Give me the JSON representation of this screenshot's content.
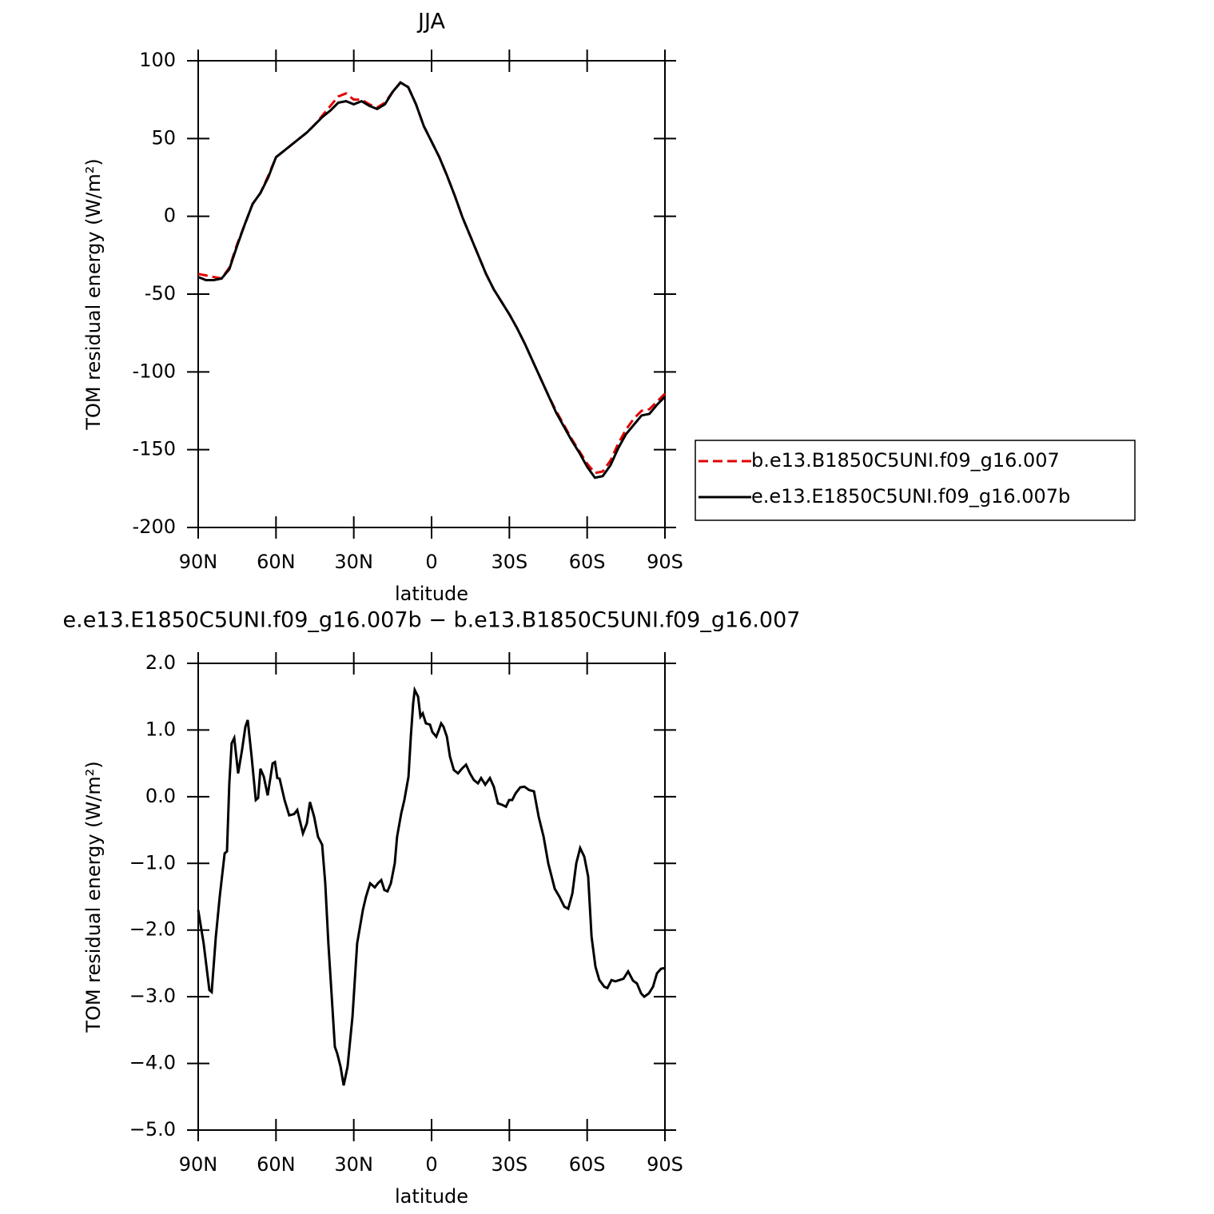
{
  "chart_data": [
    {
      "type": "line",
      "title": "JJA",
      "xlabel": "latitude",
      "ylabel": "TOM residual energy (W/m²)",
      "xlim": [
        90,
        -90
      ],
      "xticks": [
        {
          "value": 90,
          "label": "90N"
        },
        {
          "value": 60,
          "label": "60N"
        },
        {
          "value": 30,
          "label": "30N"
        },
        0,
        {
          "value": -30,
          "label": "30S"
        },
        {
          "value": -60,
          "label": "60S"
        },
        {
          "value": -90,
          "label": "90S"
        }
      ],
      "ylim": [
        -200,
        100
      ],
      "yticks": [
        100,
        50,
        0,
        -50,
        -100,
        -150,
        -200
      ],
      "legend": "right",
      "x": [
        90,
        87,
        84,
        81,
        78,
        75,
        72,
        69,
        66,
        63,
        60,
        57,
        54,
        51,
        48,
        45,
        42,
        39,
        36,
        33,
        30,
        27,
        24,
        21,
        18,
        15,
        12,
        9,
        6,
        3,
        0,
        -3,
        -6,
        -9,
        -12,
        -15,
        -18,
        -21,
        -24,
        -27,
        -30,
        -33,
        -36,
        -39,
        -42,
        -45,
        -48,
        -51,
        -54,
        -57,
        -60,
        -63,
        -66,
        -69,
        -72,
        -75,
        -78,
        -81,
        -84,
        -87,
        -90
      ],
      "series": [
        {
          "name": "b.e13.B1850C5UNI.f09_g16.007",
          "color": "#e00000",
          "style": "dashed",
          "values": [
            -37,
            -38,
            -39,
            -40,
            -33,
            -18,
            -5,
            8,
            15,
            26,
            38,
            42,
            46,
            50,
            54,
            59,
            65,
            71,
            77,
            79,
            75,
            75,
            72,
            70,
            73,
            80,
            86,
            83,
            72,
            58,
            48,
            38,
            26,
            13,
            -1,
            -13,
            -25,
            -37,
            -47,
            -55,
            -63,
            -72,
            -82,
            -93,
            -104,
            -115,
            -125,
            -134,
            -143,
            -151,
            -159,
            -165,
            -164,
            -157,
            -146,
            -137,
            -130,
            -125,
            -124,
            -119,
            -114
          ]
        },
        {
          "name": "e.e13.E1850C5UNI.f09_g16.007b",
          "color": "#000000",
          "style": "solid",
          "values": [
            -39,
            -41,
            -41,
            -40,
            -34,
            -19,
            -5,
            8,
            15,
            25,
            38,
            42,
            46,
            50,
            54,
            59,
            64,
            68,
            73,
            74,
            72,
            74,
            71,
            69,
            72,
            80,
            86,
            83,
            72,
            58,
            48,
            38,
            26,
            13,
            -1,
            -13,
            -25,
            -37,
            -47,
            -55,
            -63,
            -72,
            -82,
            -93,
            -104,
            -115,
            -126,
            -135,
            -144,
            -152,
            -161,
            -168,
            -167,
            -160,
            -149,
            -140,
            -134,
            -128,
            -127,
            -121,
            -116
          ]
        }
      ]
    },
    {
      "type": "line",
      "title": "e.e13.E1850C5UNI.f09_g16.007b − b.e13.B1850C5UNI.f09_g16.007",
      "xlabel": "latitude",
      "ylabel": "TOM residual energy (W/m²)",
      "xlim": [
        90,
        -90
      ],
      "xticks": [
        {
          "value": 90,
          "label": "90N"
        },
        {
          "value": 60,
          "label": "60N"
        },
        {
          "value": 30,
          "label": "30N"
        },
        0,
        {
          "value": -30,
          "label": "30S"
        },
        {
          "value": -60,
          "label": "60S"
        },
        {
          "value": -90,
          "label": "90S"
        }
      ],
      "ylim": [
        -5,
        2
      ],
      "yticks": [
        {
          "value": 2,
          "label": "2.0"
        },
        {
          "value": 1,
          "label": "1.0"
        },
        {
          "value": 0,
          "label": "0.0"
        },
        {
          "value": -1,
          "label": "−1.0"
        },
        {
          "value": -2,
          "label": "−2.0"
        },
        {
          "value": -3,
          "label": "−3.0"
        },
        {
          "value": -4,
          "label": "−4.0"
        },
        {
          "value": -5,
          "label": "−5.0"
        }
      ],
      "x": [
        90.0,
        87.9,
        85.7,
        84.8,
        83.2,
        81.7,
        79.8,
        78.9,
        78.0,
        77.1,
        76.1,
        74.6,
        73.1,
        71.8,
        70.9,
        69.4,
        67.8,
        66.9,
        66.0,
        64.7,
        63.2,
        61.3,
        60.4,
        59.5,
        58.6,
        56.7,
        54.9,
        53.0,
        51.8,
        49.6,
        48.1,
        46.9,
        45.3,
        43.8,
        42.2,
        41.0,
        39.8,
        38.5,
        37.3,
        36.4,
        35.1,
        33.9,
        32.4,
        30.5,
        28.7,
        26.5,
        25.3,
        23.7,
        21.9,
        20.7,
        19.4,
        18.2,
        17.0,
        15.7,
        14.2,
        13.3,
        11.7,
        10.5,
        8.9,
        8.0,
        7.1,
        6.5,
        5.2,
        4.3,
        3.4,
        2.2,
        0.6,
        -0.3,
        -1.8,
        -2.8,
        -3.7,
        -4.6,
        -5.9,
        -7.1,
        -8.6,
        -10.2,
        -11.7,
        -13.3,
        -14.8,
        -16.3,
        -17.9,
        -19.1,
        -20.7,
        -22.5,
        -24.0,
        -25.6,
        -27.1,
        -28.7,
        -29.9,
        -31.1,
        -32.4,
        -34.2,
        -35.8,
        -37.6,
        -39.5,
        -41.3,
        -43.2,
        -45.0,
        -47.5,
        -49.3,
        -51.2,
        -52.7,
        -54.3,
        -55.8,
        -57.3,
        -58.9,
        -60.4,
        -61.7,
        -63.2,
        -64.7,
        -66.6,
        -67.8,
        -69.4,
        -70.9,
        -72.4,
        -74.0,
        -75.8,
        -77.7,
        -79.2,
        -80.8,
        -82.0,
        -83.8,
        -85.4,
        -86.9,
        -88.5,
        -90.0
      ],
      "series": [
        {
          "color": "#000000",
          "style": "solid",
          "values": [
            -1.7,
            -2.2,
            -2.9,
            -2.93,
            -2.1,
            -1.5,
            -0.85,
            -0.82,
            0.2,
            0.8,
            0.88,
            0.35,
            0.7,
            1.05,
            1.15,
            0.6,
            -0.05,
            -0.02,
            0.42,
            0.3,
            0.02,
            0.5,
            0.52,
            0.28,
            0.27,
            -0.05,
            -0.28,
            -0.26,
            -0.2,
            -0.55,
            -0.4,
            -0.08,
            -0.3,
            -0.6,
            -0.72,
            -1.3,
            -2.2,
            -3.0,
            -3.75,
            -3.85,
            -4.05,
            -4.33,
            -4.05,
            -3.3,
            -2.2,
            -1.7,
            -1.5,
            -1.3,
            -1.36,
            -1.3,
            -1.25,
            -1.4,
            -1.42,
            -1.3,
            -1.0,
            -0.6,
            -0.25,
            -0.05,
            0.3,
            0.9,
            1.4,
            1.6,
            1.5,
            1.2,
            1.25,
            1.1,
            1.08,
            0.97,
            0.9,
            1.0,
            1.1,
            1.05,
            0.9,
            0.6,
            0.4,
            0.35,
            0.42,
            0.48,
            0.35,
            0.25,
            0.2,
            0.28,
            0.18,
            0.28,
            0.15,
            -0.1,
            -0.12,
            -0.15,
            -0.05,
            -0.05,
            0.05,
            0.14,
            0.15,
            0.1,
            0.08,
            -0.3,
            -0.6,
            -1.0,
            -1.38,
            -1.5,
            -1.65,
            -1.68,
            -1.45,
            -1.0,
            -0.77,
            -0.9,
            -1.2,
            -2.1,
            -2.55,
            -2.75,
            -2.85,
            -2.87,
            -2.75,
            -2.77,
            -2.75,
            -2.73,
            -2.62,
            -2.76,
            -2.8,
            -2.95,
            -3.0,
            -2.95,
            -2.85,
            -2.65,
            -2.58,
            -2.57
          ]
        }
      ]
    }
  ]
}
